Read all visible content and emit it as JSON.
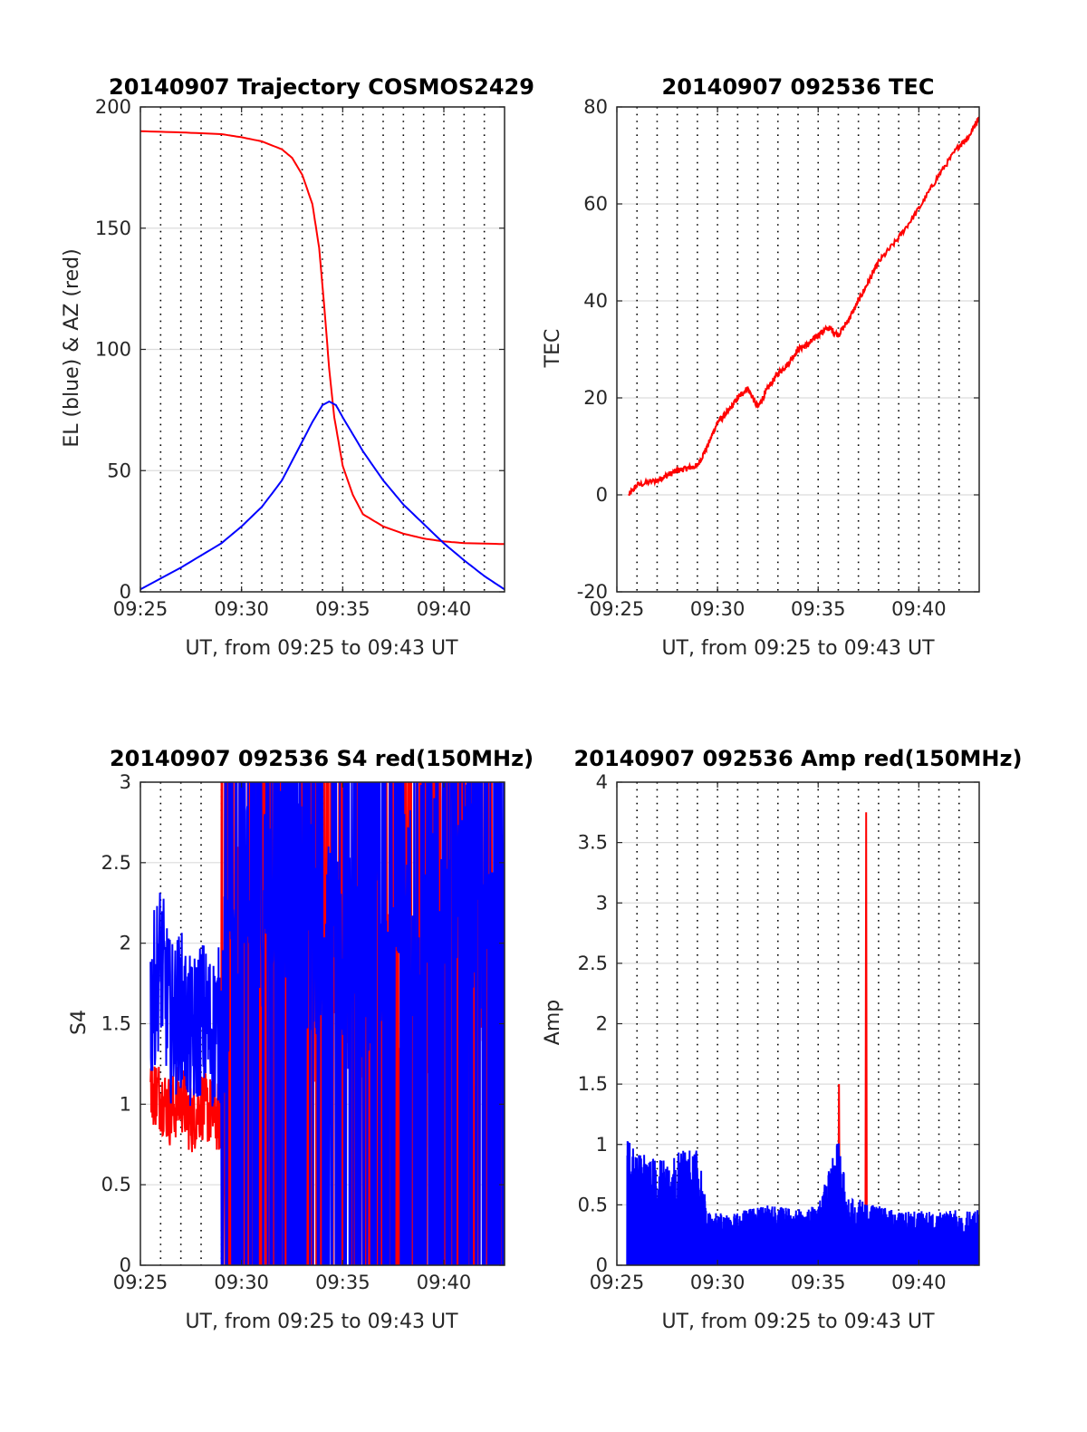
{
  "chart_data": [
    {
      "type": "line",
      "title": "20140907 Trajectory COSMOS2429",
      "xlabel": "UT, from 09:25 to 09:43 UT",
      "ylabel": "EL (blue) & AZ (red)",
      "xlim": [
        "09:25",
        "09:43"
      ],
      "ylim": [
        0,
        200
      ],
      "xticks": [
        "09:25",
        "09:30",
        "09:35",
        "09:40"
      ],
      "yticks": [
        0,
        50,
        100,
        150,
        200
      ],
      "grid": true,
      "series": [
        {
          "name": "AZ (red)",
          "color": "#ff0000",
          "x": [
            "09:25",
            "09:27",
            "09:29",
            "09:30",
            "09:31",
            "09:32",
            "09:32:30",
            "09:33",
            "09:33:30",
            "09:33:50",
            "09:34:05",
            "09:34:20",
            "09:34:35",
            "09:35",
            "09:35:30",
            "09:36",
            "09:37",
            "09:38",
            "09:39",
            "09:40",
            "09:41",
            "09:43"
          ],
          "y": [
            190,
            189.5,
            188.8,
            187.5,
            185.8,
            182.5,
            179,
            172,
            160,
            142,
            118,
            92,
            72,
            52,
            40,
            32,
            27,
            24,
            22,
            20.8,
            20.1,
            19.7
          ]
        },
        {
          "name": "EL (blue)",
          "color": "#0000ff",
          "x": [
            "09:25",
            "09:27",
            "09:29",
            "09:30",
            "09:31",
            "09:32",
            "09:33",
            "09:33:30",
            "09:34",
            "09:34:20",
            "09:34:40",
            "09:35",
            "09:36",
            "09:37",
            "09:38",
            "09:39",
            "09:40",
            "09:41",
            "09:42",
            "09:43"
          ],
          "y": [
            1,
            10,
            20,
            27,
            35,
            46,
            62,
            70,
            77,
            78.5,
            77,
            72,
            58,
            46,
            36,
            28,
            20,
            13,
            6.5,
            1
          ]
        }
      ]
    },
    {
      "type": "line",
      "title": "20140907 092536 TEC",
      "xlabel": "UT, from 09:25 to 09:43 UT",
      "ylabel": "TEC",
      "xlim": [
        "09:25",
        "09:43"
      ],
      "ylim": [
        -20,
        80
      ],
      "xticks": [
        "09:25",
        "09:30",
        "09:35",
        "09:40"
      ],
      "yticks": [
        -20,
        0,
        20,
        40,
        60,
        80
      ],
      "grid": true,
      "series": [
        {
          "name": "TEC",
          "color": "#ff0000",
          "x": [
            "09:25:36",
            "09:26",
            "09:27",
            "09:27:30",
            "09:28",
            "09:28:30",
            "09:29",
            "09:29:30",
            "09:30",
            "09:30:30",
            "09:31",
            "09:31:30",
            "09:32",
            "09:32:30",
            "09:33",
            "09:33:30",
            "09:34",
            "09:34:30",
            "09:35",
            "09:35:30",
            "09:36",
            "09:36:30",
            "09:37",
            "09:37:30",
            "09:38",
            "09:39",
            "09:40",
            "09:41",
            "09:42",
            "09:42:30",
            "09:43"
          ],
          "y": [
            0,
            2,
            3,
            4,
            5,
            5.5,
            6,
            10,
            15,
            17,
            20,
            22,
            18,
            22,
            25,
            27,
            30,
            31,
            33,
            34.5,
            33,
            36,
            40,
            44,
            48,
            53,
            59,
            66,
            72,
            74,
            78
          ]
        }
      ]
    },
    {
      "type": "line",
      "title": "20140907 092536 S4 red(150MHz)",
      "xlabel": "UT, from 09:25 to 09:43 UT",
      "ylabel": "S4",
      "xlim": [
        "09:25",
        "09:43"
      ],
      "ylim": [
        0,
        3
      ],
      "xticks": [
        "09:25",
        "09:30",
        "09:35",
        "09:40"
      ],
      "yticks": [
        0,
        0.5,
        1,
        1.5,
        2,
        2.5,
        3
      ],
      "grid": true,
      "series": [
        {
          "name": "S4 red",
          "color": "#ff0000",
          "x": [
            "09:25:30",
            "09:26",
            "09:26:30",
            "09:27",
            "09:27:30",
            "09:28",
            "09:28:30",
            "09:29",
            "09:30",
            "09:31",
            "09:32",
            "09:33",
            "09:34",
            "09:35",
            "09:36",
            "09:37",
            "09:38",
            "09:39",
            "09:40",
            "09:41",
            "09:42",
            "09:43"
          ],
          "y": [
            1.1,
            1.05,
            0.95,
            1.05,
            0.9,
            1.0,
            0.95,
            0.9,
            2.5,
            1.8,
            2.2,
            2.0,
            1.5,
            1.6,
            1.55,
            1.5,
            1.6,
            1.55,
            1.6,
            1.55,
            1.6,
            1.55
          ]
        },
        {
          "name": "S4 blue",
          "color": "#0000ff",
          "x": [
            "09:25:30",
            "09:26",
            "09:26:30",
            "09:27",
            "09:27:30",
            "09:28",
            "09:28:30",
            "09:29",
            "09:30",
            "09:31",
            "09:32",
            "09:33",
            "09:34",
            "09:35",
            "09:36",
            "09:37",
            "09:38",
            "09:39",
            "09:40",
            "09:41",
            "09:42",
            "09:43"
          ],
          "y": [
            1.6,
            1.9,
            1.5,
            1.6,
            1.4,
            1.55,
            1.45,
            1.5,
            2.5,
            2.3,
            2.4,
            2.2,
            2.0,
            1.8,
            2.0,
            2.1,
            2.2,
            2.3,
            2.4,
            2.3,
            2.2,
            2.1
          ]
        }
      ]
    },
    {
      "type": "line",
      "title": "20140907 092536 Amp red(150MHz)",
      "xlabel": "UT, from 09:25 to 09:43 UT",
      "ylabel": "Amp",
      "xlim": [
        "09:25",
        "09:43"
      ],
      "ylim": [
        0,
        4
      ],
      "xticks": [
        "09:25",
        "09:30",
        "09:35",
        "09:40"
      ],
      "yticks": [
        0,
        0.5,
        1,
        1.5,
        2,
        2.5,
        3,
        3.5,
        4
      ],
      "grid": true,
      "series": [
        {
          "name": "Amp red",
          "color": "#ff0000",
          "x": [
            "09:36:00",
            "09:36:02",
            "09:36:04",
            "09:37:21",
            "09:37:23",
            "09:37:25"
          ],
          "y": [
            0.3,
            1.5,
            0.3,
            0.3,
            3.75,
            0.3
          ]
        },
        {
          "name": "Amp blue",
          "color": "#0000ff",
          "x": [
            "09:25:30",
            "09:26",
            "09:27",
            "09:28",
            "09:29",
            "09:29:30",
            "09:31",
            "09:32",
            "09:33",
            "09:34",
            "09:35",
            "09:36",
            "09:36:30",
            "09:37",
            "09:38",
            "09:39",
            "09:40",
            "09:41",
            "09:42",
            "09:43"
          ],
          "y": [
            0.95,
            0.85,
            0.8,
            0.85,
            0.9,
            0.4,
            0.4,
            0.45,
            0.45,
            0.42,
            0.45,
            0.95,
            0.5,
            0.5,
            0.45,
            0.4,
            0.42,
            0.4,
            0.42,
            0.45
          ]
        }
      ]
    }
  ]
}
